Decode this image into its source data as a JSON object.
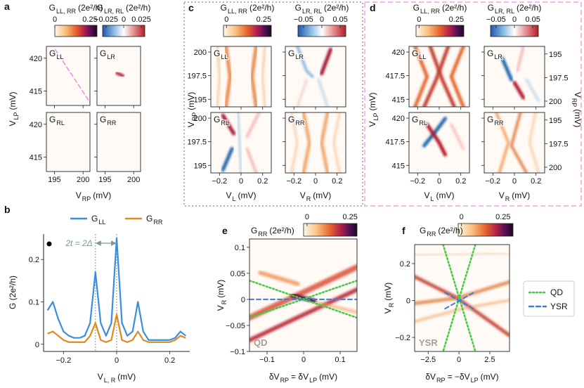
{
  "chart_data": [
    {
      "type": "heatmap",
      "panel_label": "a",
      "colorbars": [
        {
          "title": [
            {
              "t": "G"
            },
            {
              "sub": "LL, RR"
            },
            {
              "t": "(2e²/h)"
            }
          ],
          "lim": [
            0,
            0.3
          ],
          "ticks": [
            0,
            0.25
          ],
          "cmap": "warm"
        },
        {
          "title": [
            {
              "t": "G"
            },
            {
              "sub": "LR, RL"
            },
            {
              "t": "(2e²/h)"
            }
          ],
          "lim": [
            -0.03,
            0.03
          ],
          "ticks": [
            {
              "value": -0.025,
              "label": "−0.025"
            },
            0,
            0.025
          ],
          "cmap": "diverging"
        }
      ],
      "plots": [
        {
          "name": [
            {
              "t": "G"
            },
            {
              "sub": "LL"
            }
          ]
        },
        {
          "name": [
            {
              "t": "G"
            },
            {
              "sub": "LR"
            }
          ]
        },
        {
          "name": [
            {
              "t": "G"
            },
            {
              "sub": "RL"
            }
          ]
        },
        {
          "name": [
            {
              "t": "G"
            },
            {
              "sub": "RR"
            }
          ]
        }
      ],
      "xlim": [
        193.6,
        201.2
      ],
      "xticks": [
        195,
        200
      ],
      "ylim": [
        412.8,
        421.8
      ],
      "yticks": [
        415,
        420
      ],
      "xlabel": [
        {
          "t": "V"
        },
        {
          "sub": "RP"
        },
        {
          "t": "(mV)"
        }
      ],
      "ylabel": [
        {
          "t": "V"
        },
        {
          "sub": "LP"
        },
        {
          "t": "(mV)"
        }
      ]
    },
    {
      "type": "heatmap",
      "panel_label": "c",
      "colorbars": [
        {
          "title": [
            {
              "t": "G"
            },
            {
              "sub": "LL, RR"
            },
            {
              "t": "(2e²/h)"
            }
          ],
          "lim": [
            -0.02,
            0.3
          ],
          "ticks": [
            0,
            0.25
          ],
          "cmap": "warm"
        },
        {
          "title": [
            {
              "t": "G"
            },
            {
              "sub": "LR, RL"
            },
            {
              "t": "(2e²/h)"
            }
          ],
          "lim": [
            -0.065,
            0.065
          ],
          "ticks": [
            {
              "value": -0.05,
              "label": "−0.05"
            },
            0,
            0.05
          ],
          "cmap": "diverging"
        }
      ],
      "plots": [
        {
          "name": [
            {
              "t": "G"
            },
            {
              "sub": "LL"
            }
          ]
        },
        {
          "name": [
            {
              "t": "G"
            },
            {
              "sub": "LR"
            }
          ]
        },
        {
          "name": [
            {
              "t": "G"
            },
            {
              "sub": "RL"
            }
          ]
        },
        {
          "name": [
            {
              "t": "G"
            },
            {
              "sub": "RR"
            }
          ]
        }
      ],
      "xlim": [
        -0.28,
        0.28
      ],
      "xticks": [
        {
          "value": -0.2,
          "label": "−0.2"
        },
        0,
        0.2
      ],
      "ylim": [
        194.2,
        200.6
      ],
      "yticks": [
        195,
        197.5,
        200
      ],
      "xlabels": [
        [
          {
            "t": "V"
          },
          {
            "sub": "L"
          },
          {
            "t": "(mV)"
          }
        ],
        [
          {
            "t": "V"
          },
          {
            "sub": "R"
          },
          {
            "t": "(mV)"
          }
        ]
      ],
      "ylabel": [
        {
          "t": "V"
        },
        {
          "sub": "RP"
        },
        {
          "t": "(mV)"
        }
      ]
    },
    {
      "type": "heatmap",
      "panel_label": "d",
      "colorbars": [
        {
          "title": [
            {
              "t": "G"
            },
            {
              "sub": "LL, RR"
            },
            {
              "t": "(2e²/h)"
            }
          ],
          "lim": [
            -0.02,
            0.3
          ],
          "ticks": [
            0,
            0.25
          ],
          "cmap": "warm"
        },
        {
          "title": [
            {
              "t": "G"
            },
            {
              "sub": "LR, RL"
            },
            {
              "t": "(2e²/h)"
            }
          ],
          "lim": [
            -0.065,
            0.065
          ],
          "ticks": [
            {
              "value": -0.05,
              "label": "−0.05"
            },
            0,
            0.05
          ],
          "cmap": "diverging"
        }
      ],
      "plots": [
        {
          "name": [
            {
              "t": "G"
            },
            {
              "sub": "LL"
            }
          ]
        },
        {
          "name": [
            {
              "t": "G"
            },
            {
              "sub": "LR"
            }
          ]
        },
        {
          "name": [
            {
              "t": "G"
            },
            {
              "sub": "RL"
            }
          ]
        },
        {
          "name": [
            {
              "t": "G"
            },
            {
              "sub": "RR"
            }
          ]
        }
      ],
      "xlim": [
        -0.28,
        0.28
      ],
      "xticks": [
        {
          "value": -0.2,
          "label": "−0.2"
        },
        0,
        0.2
      ],
      "ylim": [
        414.2,
        420.6
      ],
      "yticks": [
        415,
        417.5,
        420
      ],
      "y2lim": [
        200.6,
        194.2
      ],
      "y2ticks": [
        195,
        197.5,
        200
      ],
      "xlabels": [
        [
          {
            "t": "V"
          },
          {
            "sub": "L"
          },
          {
            "t": "(mV)"
          }
        ],
        [
          {
            "t": "V"
          },
          {
            "sub": "R"
          },
          {
            "t": "(mV)"
          }
        ]
      ],
      "ylabel": [
        {
          "t": "V"
        },
        {
          "sub": "LP"
        },
        {
          "t": "(mV)"
        }
      ],
      "y2label": [
        {
          "t": "V"
        },
        {
          "sub": "RP"
        },
        {
          "t": "(mV)"
        }
      ]
    },
    {
      "type": "line",
      "panel_label": "b",
      "x": [
        -0.26,
        -0.24,
        -0.22,
        -0.2,
        -0.18,
        -0.16,
        -0.14,
        -0.12,
        -0.1,
        -0.08,
        -0.06,
        -0.04,
        -0.02,
        0,
        0.02,
        0.04,
        0.06,
        0.08,
        0.1,
        0.12,
        0.14,
        0.16,
        0.18,
        0.2,
        0.22,
        0.24,
        0.26
      ],
      "series": [
        {
          "name": [
            {
              "t": "G"
            },
            {
              "sub": "LL"
            }
          ],
          "color": "#3a8ee0",
          "values": [
            0.08,
            0.1,
            0.06,
            0.03,
            0.02,
            0.015,
            0.015,
            0.02,
            0.05,
            0.17,
            0.05,
            0.02,
            0.05,
            0.25,
            0.05,
            0.02,
            0.03,
            0.1,
            0.03,
            0.01,
            0.01,
            0.01,
            0.01,
            0.01,
            0.015,
            0.03,
            0.02
          ]
        },
        {
          "name": [
            {
              "t": "G"
            },
            {
              "sub": "RR"
            }
          ],
          "color": "#e08a1a",
          "values": [
            0.025,
            0.03,
            0.02,
            0.01,
            0.005,
            0.005,
            0.005,
            0.005,
            0.02,
            0.05,
            0.01,
            0.005,
            0.01,
            0.07,
            0.01,
            0.005,
            0.01,
            0.03,
            0.01,
            0.005,
            0.005,
            0.005,
            0.005,
            0.005,
            0.01,
            0.02,
            0.015
          ]
        }
      ],
      "xlim": [
        -0.275,
        0.275
      ],
      "xticks": [
        {
          "value": -0.2,
          "label": "−0.2"
        },
        0,
        0.2
      ],
      "ylim": [
        -0.017,
        0.26
      ],
      "yticks": [
        0,
        0.1,
        0.2
      ],
      "vlines": [
        -0.08,
        0
      ],
      "annotation": "2t = 2Δ",
      "xlabel": [
        {
          "t": "V"
        },
        {
          "sub": "L, R"
        },
        {
          "t": "(mV)"
        }
      ],
      "ylabel": [
        {
          "t": "G (2e²/h)"
        }
      ]
    },
    {
      "type": "heatmap",
      "panel_label": "e",
      "colorbars": [
        {
          "title": [
            {
              "t": "G"
            },
            {
              "sub": "RR"
            },
            {
              "t": "(2e²/h)"
            }
          ],
          "lim": [
            -0.02,
            0.29
          ],
          "ticks": [
            0,
            0.25
          ],
          "cmap": "warm"
        }
      ],
      "xlim": [
        -0.148,
        0.146
      ],
      "xticks": [
        {
          "value": -0.1,
          "label": "−0.1"
        },
        0,
        0.1
      ],
      "ylim": [
        -0.1,
        0.116
      ],
      "yticks": [
        {
          "value": -0.1,
          "label": "−0.1"
        },
        {
          "value": -0.05,
          "label": "−0.05"
        },
        0,
        0.05,
        0.1
      ],
      "xlabel": [
        {
          "t": "δV"
        },
        {
          "sub": "RP"
        },
        {
          "t": "= δV"
        },
        {
          "sub": "LP"
        },
        {
          "t": "(mV)"
        }
      ],
      "ylabel": [
        {
          "t": "V"
        },
        {
          "sub": "R"
        },
        {
          "t": "(mV)"
        }
      ],
      "watermark": "QD"
    },
    {
      "type": "heatmap",
      "panel_label": "f",
      "colorbars": [
        {
          "title": [
            {
              "t": "G"
            },
            {
              "sub": "RR"
            },
            {
              "t": "(2e²/h)"
            }
          ],
          "lim": [
            -0.02,
            0.31
          ],
          "ticks": [
            0,
            0.25
          ],
          "cmap": "warm"
        }
      ],
      "xlim": [
        -3.6,
        4.1
      ],
      "xticks": [
        {
          "value": -2.5,
          "label": "−2.5"
        },
        0,
        2.5
      ],
      "ylim": [
        -0.276,
        0.303
      ],
      "yticks": [
        {
          "value": -0.2,
          "label": "−0.2"
        },
        0,
        0.2
      ],
      "xlabel": [
        {
          "t": "δV"
        },
        {
          "sub": "RP"
        },
        {
          "t": "= −δV"
        },
        {
          "sub": "LP"
        },
        {
          "t": "(mV)"
        }
      ],
      "ylabel": [
        {
          "t": "V"
        },
        {
          "sub": "R"
        },
        {
          "t": "(mV)"
        }
      ],
      "watermark": "YSR",
      "legend": [
        {
          "name": "QD",
          "style": "dotted",
          "color": "#44cc44"
        },
        {
          "name": "YSR",
          "style": "dashed",
          "color": "#3a7fd5"
        }
      ]
    }
  ]
}
